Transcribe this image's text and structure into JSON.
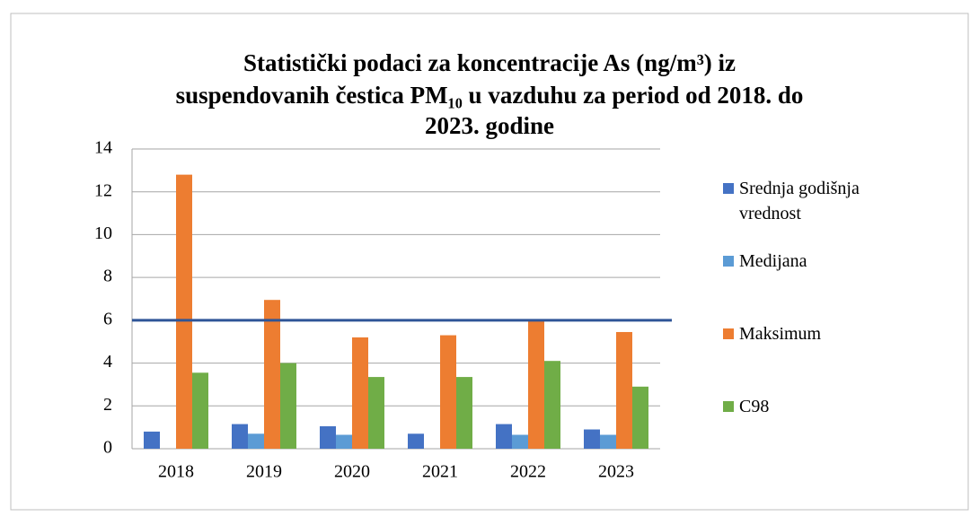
{
  "chart_data": {
    "type": "bar",
    "title": [
      "Statistički podaci za koncentracije As (ng/m³) iz",
      "suspendovanih čestica PM₁₀ u vazduhu za period od 2018. do",
      "2023. godine"
    ],
    "categories": [
      "2018",
      "2019",
      "2020",
      "2021",
      "2022",
      "2023"
    ],
    "series": [
      {
        "name": "Srednja godišnja vrednost",
        "color": "#4472c4",
        "values": [
          0.8,
          1.15,
          1.05,
          0.7,
          1.15,
          0.9
        ]
      },
      {
        "name": "Medijana",
        "color": "#5b9bd5",
        "values": [
          null,
          0.7,
          0.65,
          null,
          0.65,
          0.65
        ]
      },
      {
        "name": "Maksimum",
        "color": "#ed7d31",
        "values": [
          12.8,
          6.95,
          5.2,
          5.3,
          6.0,
          5.45
        ]
      },
      {
        "name": "C98",
        "color": "#70ad47",
        "values": [
          3.55,
          4.0,
          3.35,
          3.35,
          4.1,
          2.9
        ]
      }
    ],
    "threshold": {
      "value": 6,
      "color": "#2f5597"
    },
    "ylim": [
      0,
      14
    ],
    "yticks": [
      0,
      2,
      4,
      6,
      8,
      10,
      12,
      14
    ],
    "grid": true,
    "legend": "right"
  }
}
